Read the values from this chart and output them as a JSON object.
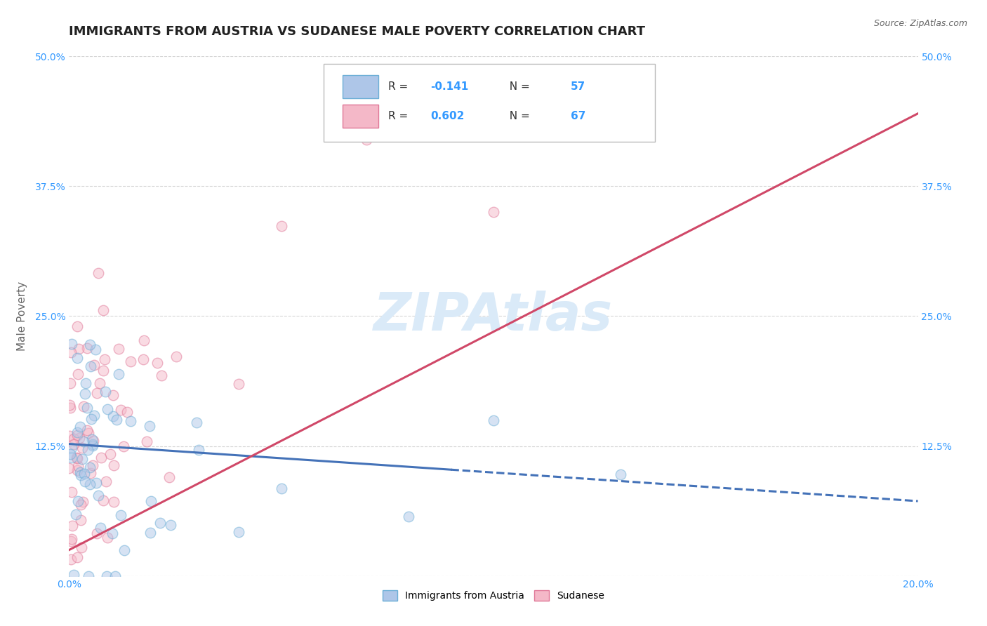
{
  "title": "IMMIGRANTS FROM AUSTRIA VS SUDANESE MALE POVERTY CORRELATION CHART",
  "source": "Source: ZipAtlas.com",
  "ylabel": "Male Poverty",
  "xlim": [
    0.0,
    0.2
  ],
  "ylim": [
    0.0,
    0.5
  ],
  "xticks": [
    0.0,
    0.05,
    0.1,
    0.15,
    0.2
  ],
  "xtick_labels": [
    "0.0%",
    "",
    "",
    "",
    "20.0%"
  ],
  "yticks": [
    0.0,
    0.125,
    0.25,
    0.375,
    0.5
  ],
  "ytick_labels_left": [
    "",
    "12.5%",
    "25.0%",
    "37.5%",
    "50.0%"
  ],
  "ytick_labels_right": [
    "",
    "12.5%",
    "25.0%",
    "37.5%",
    "50.0%"
  ],
  "austria_color": "#aec6e8",
  "austria_edge_color": "#6baed6",
  "sudanese_color": "#f4b8c8",
  "sudanese_edge_color": "#e07898",
  "austria_line_color": "#4472b8",
  "sudanese_line_color": "#d04868",
  "watermark_color": "#daeaf8",
  "grid_color": "#cccccc",
  "legend_label_austria": "Immigrants from Austria",
  "legend_label_sudanese": "Sudanese",
  "R_austria": -0.141,
  "N_austria": 57,
  "R_sudanese": 0.602,
  "N_sudanese": 67,
  "background_color": "#ffffff",
  "title_color": "#222222",
  "axis_label_color": "#666666",
  "tick_color": "#3399ff",
  "title_fontsize": 13,
  "axis_label_fontsize": 11,
  "tick_fontsize": 10,
  "marker_size": 10,
  "marker_alpha": 0.5,
  "line_width": 2.2
}
